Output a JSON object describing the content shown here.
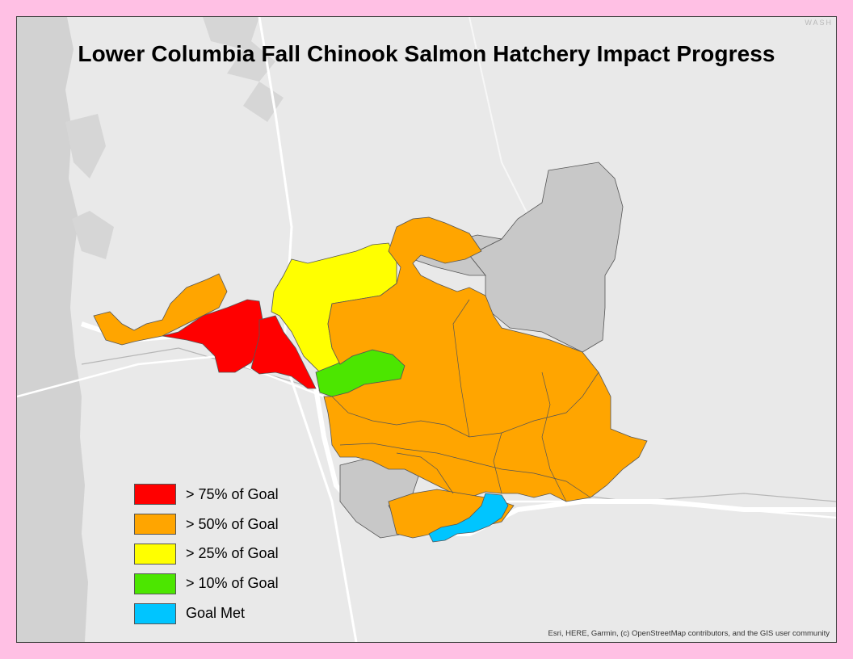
{
  "map": {
    "title": "Lower Columbia Fall Chinook Salmon Hatchery Impact Progress",
    "corner_label": "WASH",
    "attribution": "Esri, HERE, Garmin, (c) OpenStreetMap contributors, and the GIS user community",
    "background_color": "#e9e9e9",
    "frame_color": "#ffc0e4"
  },
  "legend": {
    "items": [
      {
        "label": "> 75% of Goal",
        "color": "#ff0000"
      },
      {
        "label": "> 50% of Goal",
        "color": "#ffa500"
      },
      {
        "label": "> 25% of Goal",
        "color": "#ffff00"
      },
      {
        "label": "> 10% of Goal",
        "color": "#4ce600"
      },
      {
        "label": "Goal Met",
        "color": "#00c5ff"
      }
    ]
  },
  "colors": {
    "no_data": "#c8c8c8",
    "ocean": "#d0d0d0",
    "water": "#ffffff",
    "road": "#ffffff"
  }
}
